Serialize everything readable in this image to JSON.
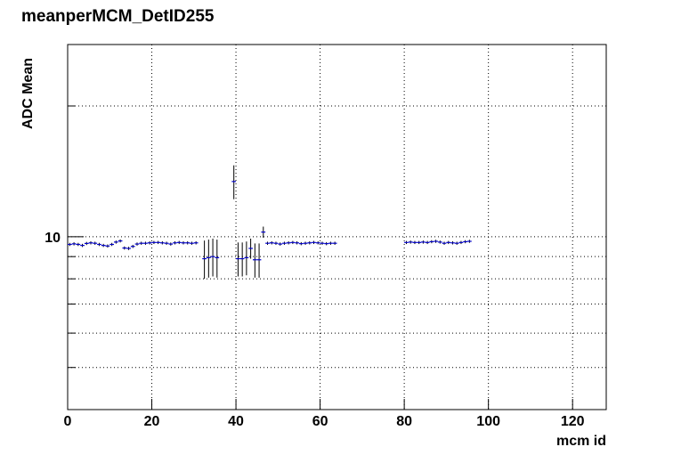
{
  "chart_data": {
    "type": "errorbar",
    "title": "meanperMCM_DetID255",
    "x_label": "mcm id",
    "y_label": "ADC Mean",
    "color": "#0000cc",
    "log_y": true,
    "grid": true,
    "bin_width": 1,
    "xlim": [
      0,
      128
    ],
    "xticks": [
      0,
      20,
      40,
      60,
      80,
      100,
      120
    ],
    "ylim": [
      4,
      27.7
    ],
    "yticks": [
      10
    ],
    "yminor": [
      5,
      6,
      7,
      8,
      9,
      20
    ],
    "x": [
      0.5,
      1.5,
      2.5,
      3.5,
      4.5,
      5.5,
      6.5,
      7.5,
      8.5,
      9.5,
      10.5,
      11.5,
      12.5,
      13.5,
      14.5,
      15.5,
      16.5,
      17.5,
      18.5,
      19.5,
      20.5,
      21.5,
      22.5,
      23.5,
      24.5,
      25.5,
      26.5,
      27.5,
      28.5,
      29.5,
      30.5,
      32.5,
      33.5,
      34.5,
      35.5,
      39.5,
      40.5,
      41.5,
      42.5,
      43.5,
      44.5,
      45.5,
      46.5,
      47.5,
      48.5,
      49.5,
      50.5,
      51.5,
      52.5,
      53.5,
      54.5,
      55.5,
      56.5,
      57.5,
      58.5,
      59.5,
      60.5,
      61.5,
      62.5,
      63.5,
      80.5,
      81.5,
      82.5,
      83.5,
      84.5,
      85.5,
      86.5,
      87.5,
      88.5,
      89.5,
      90.5,
      91.5,
      92.5,
      93.5,
      94.5,
      95.5
    ],
    "values": [
      9.6,
      9.63,
      9.6,
      9.55,
      9.65,
      9.68,
      9.66,
      9.6,
      9.55,
      9.52,
      9.6,
      9.72,
      9.78,
      9.42,
      9.4,
      9.5,
      9.62,
      9.66,
      9.66,
      9.68,
      9.7,
      9.7,
      9.68,
      9.66,
      9.62,
      9.68,
      9.7,
      9.68,
      9.68,
      9.66,
      9.68,
      8.9,
      8.95,
      9.0,
      8.95,
      13.4,
      8.9,
      8.9,
      8.95,
      9.4,
      8.85,
      8.85,
      10.25,
      9.66,
      9.68,
      9.66,
      9.62,
      9.66,
      9.68,
      9.7,
      9.68,
      9.64,
      9.66,
      9.68,
      9.7,
      9.68,
      9.66,
      9.64,
      9.66,
      9.66,
      9.7,
      9.72,
      9.7,
      9.7,
      9.72,
      9.7,
      9.74,
      9.76,
      9.72,
      9.66,
      9.7,
      9.68,
      9.66,
      9.7,
      9.74,
      9.76
    ],
    "errors": [
      0.08,
      0.08,
      0.08,
      0.08,
      0.08,
      0.08,
      0.08,
      0.08,
      0.08,
      0.08,
      0.08,
      0.08,
      0.08,
      0.08,
      0.08,
      0.08,
      0.08,
      0.08,
      0.08,
      0.08,
      0.08,
      0.08,
      0.08,
      0.08,
      0.08,
      0.08,
      0.08,
      0.08,
      0.08,
      0.08,
      0.08,
      0.9,
      0.9,
      0.9,
      0.9,
      1.2,
      0.8,
      0.8,
      0.8,
      0.5,
      0.8,
      0.8,
      0.3,
      0.08,
      0.08,
      0.08,
      0.08,
      0.08,
      0.08,
      0.08,
      0.08,
      0.08,
      0.08,
      0.08,
      0.08,
      0.08,
      0.08,
      0.08,
      0.08,
      0.08,
      0.08,
      0.08,
      0.08,
      0.08,
      0.08,
      0.08,
      0.08,
      0.08,
      0.08,
      0.08,
      0.08,
      0.08,
      0.08,
      0.08,
      0.08,
      0.08
    ]
  }
}
